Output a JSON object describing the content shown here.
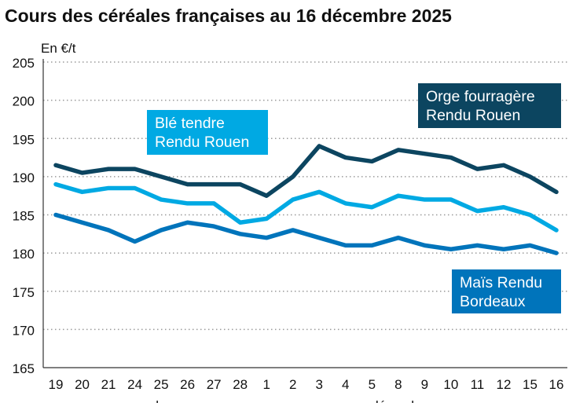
{
  "chart_data": {
    "type": "line",
    "title": "Cours des céréales françaises au 16 décembre 2025",
    "ylabel": "En €/t",
    "ylim": [
      165,
      205
    ],
    "yticks": [
      165,
      170,
      175,
      180,
      185,
      190,
      195,
      200,
      205
    ],
    "grid": true,
    "categories": [
      "19",
      "20",
      "21",
      "24",
      "25",
      "26",
      "27",
      "28",
      "1",
      "2",
      "3",
      "4",
      "5",
      "8",
      "9",
      "10",
      "11",
      "12",
      "15",
      "16"
    ],
    "month_labels": [
      "novembre",
      "décembre"
    ],
    "series": [
      {
        "name": "Orge fourragère Rendu Rouen",
        "label_lines": [
          "Orge fourragère",
          "Rendu Rouen"
        ],
        "color": "#0c4560",
        "values": [
          191.5,
          190.5,
          191,
          191,
          190,
          189,
          189,
          189,
          187.5,
          190,
          194,
          192.5,
          192,
          193.5,
          193,
          192.5,
          191,
          191.5,
          190,
          188
        ]
      },
      {
        "name": "Blé tendre Rendu Rouen",
        "label_lines": [
          "Blé tendre",
          "Rendu Rouen"
        ],
        "color": "#00a9e3",
        "values": [
          189,
          188,
          188.5,
          188.5,
          187,
          186.5,
          186.5,
          184,
          184.5,
          187,
          188,
          186.5,
          186,
          187.5,
          187,
          187,
          185.5,
          186,
          185,
          183
        ]
      },
      {
        "name": "Maïs Rendu Bordeaux",
        "label_lines": [
          "Maïs Rendu",
          "Bordeaux"
        ],
        "color": "#0074bb",
        "values": [
          185,
          184,
          183,
          181.5,
          183,
          184,
          183.5,
          182.5,
          182,
          183,
          182,
          181,
          181,
          182,
          181,
          180.5,
          181,
          180.5,
          181,
          180
        ]
      }
    ]
  }
}
